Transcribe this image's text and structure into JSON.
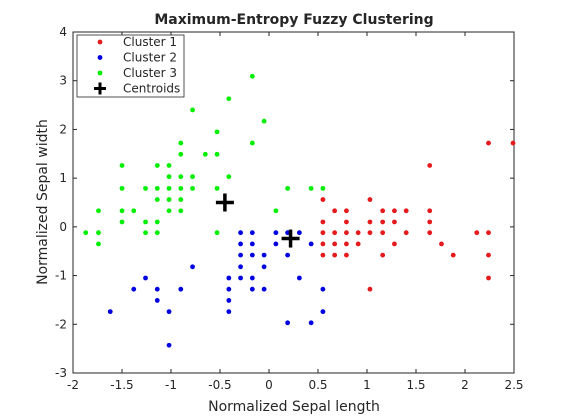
{
  "chart_data": {
    "type": "scatter",
    "title": "Maximum-Entropy Fuzzy Clustering",
    "xlabel": "Normalized Sepal length",
    "ylabel": "Normalized Sepal width",
    "xlim": [
      -2,
      2.5
    ],
    "ylim": [
      -3,
      4
    ],
    "xticks": [
      -2,
      -1.5,
      -1,
      -0.5,
      0,
      0.5,
      1,
      1.5,
      2,
      2.5
    ],
    "yticks": [
      -3,
      -2,
      -1,
      0,
      1,
      2,
      3,
      4
    ],
    "legend_position": "top-left",
    "series": [
      {
        "name": "Cluster 1",
        "color": "#e41a1c",
        "marker": "dot",
        "points": [
          [
            0.55,
            -0.58
          ],
          [
            0.55,
            0.56
          ],
          [
            0.55,
            0.1
          ],
          [
            0.55,
            -0.35
          ],
          [
            0.55,
            -0.12
          ],
          [
            0.67,
            0.33
          ],
          [
            0.67,
            -0.12
          ],
          [
            0.67,
            -0.35
          ],
          [
            0.67,
            -0.58
          ],
          [
            0.79,
            0.33
          ],
          [
            0.79,
            0.1
          ],
          [
            0.79,
            -0.12
          ],
          [
            0.79,
            -0.35
          ],
          [
            0.79,
            -0.58
          ],
          [
            0.91,
            -0.12
          ],
          [
            0.91,
            -0.35
          ],
          [
            1.03,
            0.1
          ],
          [
            1.03,
            -0.12
          ],
          [
            1.03,
            0.56
          ],
          [
            1.03,
            -1.28
          ],
          [
            1.16,
            0.33
          ],
          [
            1.16,
            -0.12
          ],
          [
            1.16,
            -0.58
          ],
          [
            1.16,
            0.1
          ],
          [
            1.28,
            0.33
          ],
          [
            1.28,
            0.1
          ],
          [
            1.28,
            -0.35
          ],
          [
            1.4,
            0.33
          ],
          [
            1.4,
            -0.12
          ],
          [
            1.64,
            1.26
          ],
          [
            1.64,
            0.33
          ],
          [
            1.64,
            -0.12
          ],
          [
            1.64,
            0.1
          ],
          [
            1.76,
            -0.35
          ],
          [
            1.88,
            -0.58
          ],
          [
            2.12,
            -0.12
          ],
          [
            2.24,
            1.72
          ],
          [
            2.24,
            -0.12
          ],
          [
            2.24,
            -0.58
          ],
          [
            2.24,
            -1.05
          ],
          [
            2.49,
            1.72
          ]
        ]
      },
      {
        "name": "Cluster 2",
        "color": "#0000e0",
        "marker": "dot",
        "points": [
          [
            -1.62,
            -1.74
          ],
          [
            -1.38,
            -1.28
          ],
          [
            -1.26,
            -1.05
          ],
          [
            -1.14,
            -1.28
          ],
          [
            -1.14,
            -1.51
          ],
          [
            -1.02,
            -1.74
          ],
          [
            -1.02,
            -2.43
          ],
          [
            -0.9,
            -1.28
          ],
          [
            -0.78,
            -0.82
          ],
          [
            -0.41,
            -1.05
          ],
          [
            -0.41,
            -1.28
          ],
          [
            -0.41,
            -1.51
          ],
          [
            -0.41,
            -1.74
          ],
          [
            -0.29,
            -0.12
          ],
          [
            -0.29,
            -0.35
          ],
          [
            -0.29,
            -0.58
          ],
          [
            -0.29,
            -0.82
          ],
          [
            -0.29,
            -1.05
          ],
          [
            -0.17,
            -0.12
          ],
          [
            -0.17,
            -0.35
          ],
          [
            -0.17,
            -0.58
          ],
          [
            -0.17,
            -1.05
          ],
          [
            -0.17,
            -1.28
          ],
          [
            -0.05,
            -0.58
          ],
          [
            -0.05,
            -0.82
          ],
          [
            -0.05,
            -1.28
          ],
          [
            0.07,
            -0.12
          ],
          [
            0.07,
            -0.35
          ],
          [
            0.19,
            -0.12
          ],
          [
            0.19,
            -0.58
          ],
          [
            0.19,
            -1.97
          ],
          [
            0.31,
            -0.12
          ],
          [
            0.31,
            -1.05
          ],
          [
            0.43,
            -0.35
          ],
          [
            0.43,
            -1.97
          ],
          [
            0.55,
            -1.28
          ],
          [
            0.55,
            -1.74
          ]
        ]
      },
      {
        "name": "Cluster 3",
        "color": "#00ee00",
        "marker": "dot",
        "points": [
          [
            -1.87,
            -0.12
          ],
          [
            -1.74,
            0.33
          ],
          [
            -1.74,
            -0.12
          ],
          [
            -1.74,
            -0.35
          ],
          [
            -1.5,
            1.26
          ],
          [
            -1.5,
            0.79
          ],
          [
            -1.5,
            0.33
          ],
          [
            -1.5,
            0.1
          ],
          [
            -1.38,
            0.33
          ],
          [
            -1.26,
            0.79
          ],
          [
            -1.26,
            0.1
          ],
          [
            -1.26,
            -0.12
          ],
          [
            -1.14,
            1.26
          ],
          [
            -1.14,
            0.79
          ],
          [
            -1.14,
            0.56
          ],
          [
            -1.14,
            0.1
          ],
          [
            -1.14,
            -0.12
          ],
          [
            -1.02,
            1.26
          ],
          [
            -1.02,
            1.03
          ],
          [
            -1.02,
            0.79
          ],
          [
            -1.02,
            0.56
          ],
          [
            -1.02,
            0.33
          ],
          [
            -0.9,
            1.72
          ],
          [
            -0.9,
            1.49
          ],
          [
            -0.9,
            1.03
          ],
          [
            -0.9,
            0.79
          ],
          [
            -0.9,
            0.56
          ],
          [
            -0.9,
            0.33
          ],
          [
            -0.78,
            2.4
          ],
          [
            -0.78,
            1.03
          ],
          [
            -0.78,
            0.79
          ],
          [
            -0.65,
            1.49
          ],
          [
            -0.53,
            1.95
          ],
          [
            -0.53,
            1.49
          ],
          [
            -0.53,
            0.79
          ],
          [
            -0.53,
            -0.12
          ],
          [
            -0.41,
            2.63
          ],
          [
            -0.41,
            1.03
          ],
          [
            -0.17,
            3.09
          ],
          [
            -0.17,
            1.72
          ],
          [
            -0.05,
            2.17
          ],
          [
            0.07,
            0.33
          ],
          [
            0.19,
            0.79
          ],
          [
            0.43,
            0.79
          ],
          [
            0.55,
            0.79
          ]
        ]
      }
    ],
    "centroids": {
      "name": "Centroids",
      "color": "#000000",
      "marker": "plus",
      "points": [
        [
          -0.45,
          0.5
        ],
        [
          0.22,
          -0.24
        ]
      ]
    }
  }
}
